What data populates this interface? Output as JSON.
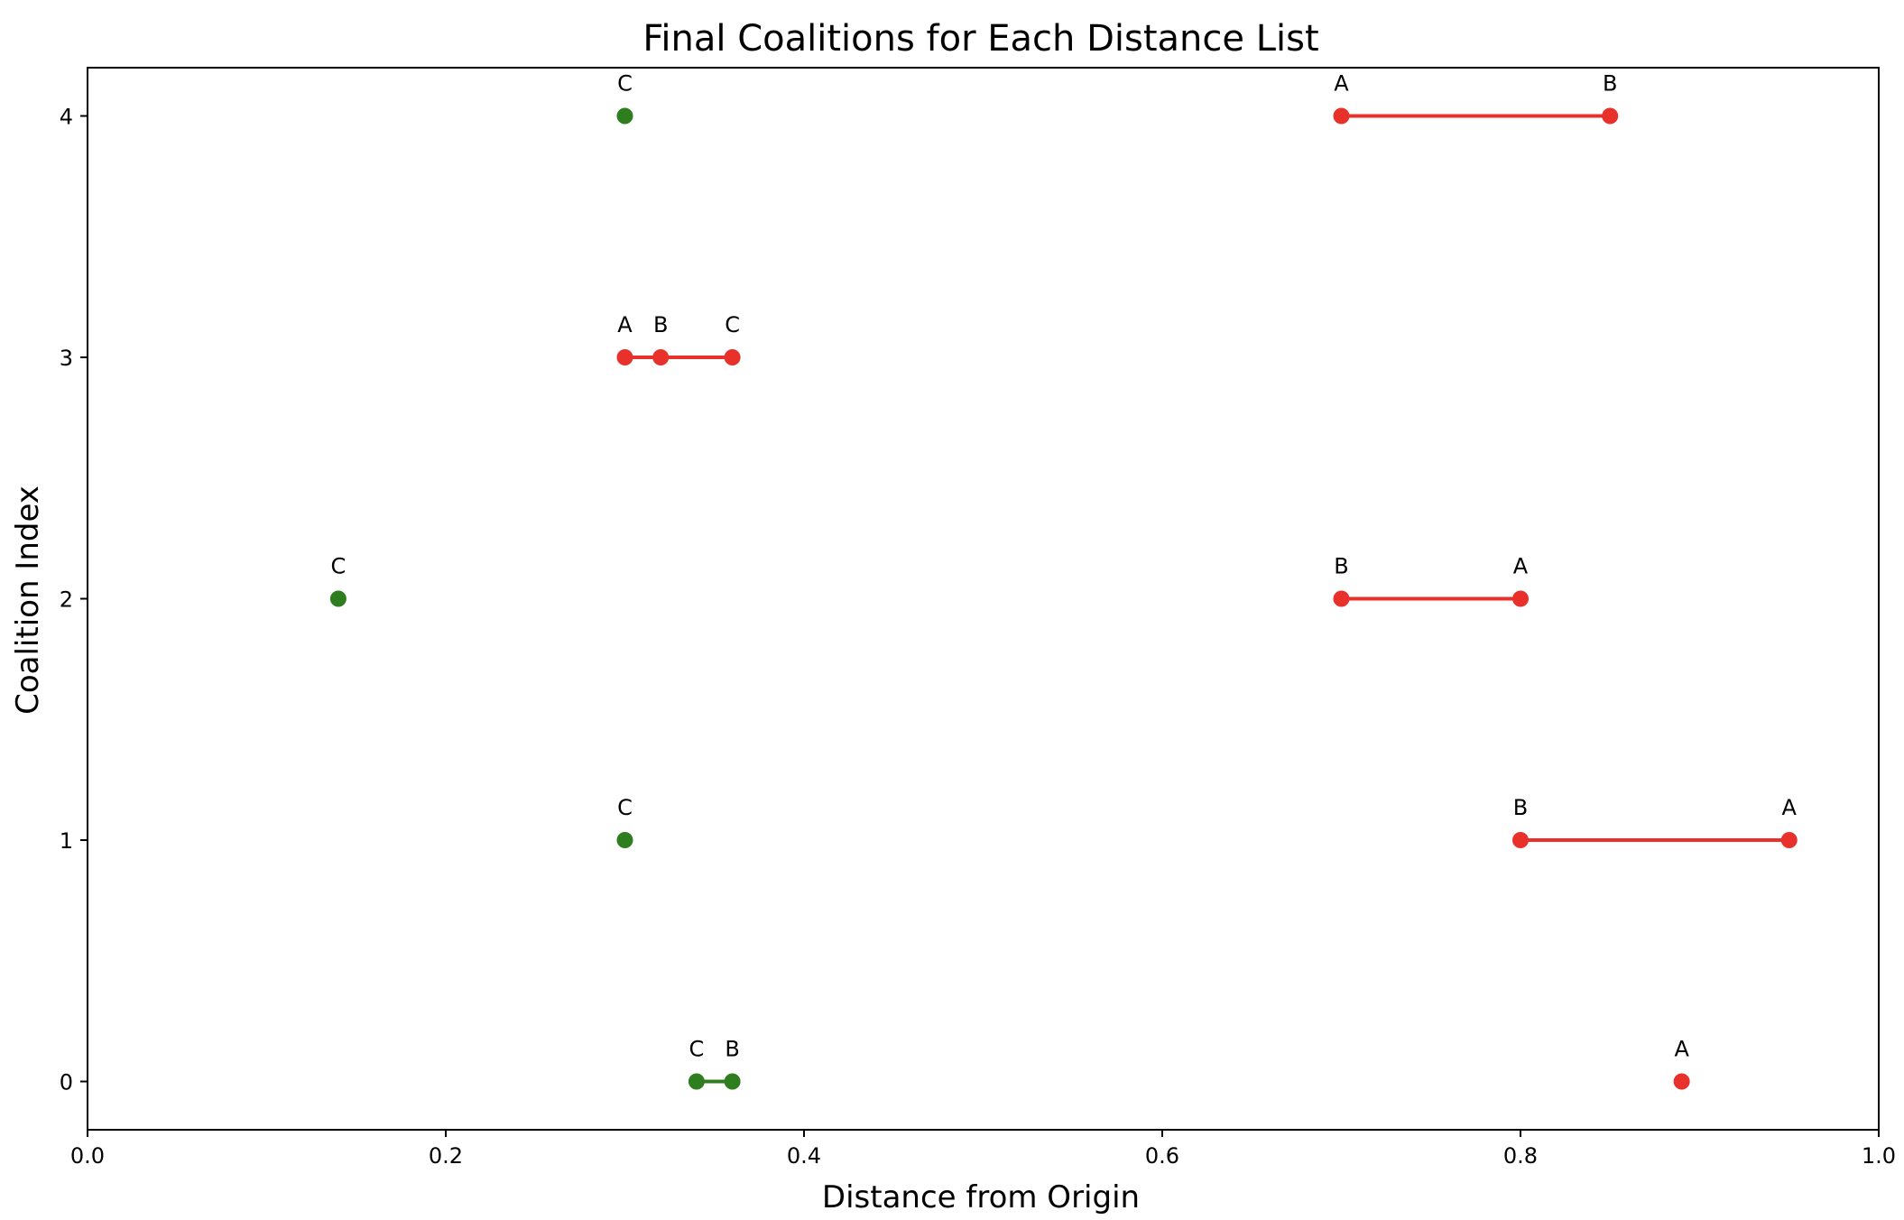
{
  "chart_data": {
    "type": "scatter",
    "title": "Final Coalitions for Each Distance List",
    "xlabel": "Distance from Origin",
    "ylabel": "Coalition Index",
    "xlim": [
      0.0,
      1.0
    ],
    "ylim": [
      -0.2,
      4.2
    ],
    "xticks": [
      0.0,
      0.2,
      0.4,
      0.6,
      0.8,
      1.0
    ],
    "xtick_labels": [
      "0.0",
      "0.2",
      "0.4",
      "0.6",
      "0.8",
      "1.0"
    ],
    "yticks": [
      0,
      1,
      2,
      3,
      4
    ],
    "ytick_labels": [
      "0",
      "1",
      "2",
      "3",
      "4"
    ],
    "grid": false,
    "colors": {
      "green": "#2e7d1e",
      "red": "#e8312a"
    },
    "coalitions": [
      {
        "index": 0,
        "color": "green",
        "points": [
          {
            "label": "C",
            "x": 0.34
          },
          {
            "label": "B",
            "x": 0.36
          }
        ]
      },
      {
        "index": 0,
        "color": "red",
        "points": [
          {
            "label": "A",
            "x": 0.89
          }
        ]
      },
      {
        "index": 1,
        "color": "green",
        "points": [
          {
            "label": "C",
            "x": 0.3
          }
        ]
      },
      {
        "index": 1,
        "color": "red",
        "points": [
          {
            "label": "B",
            "x": 0.8
          },
          {
            "label": "A",
            "x": 0.95
          }
        ]
      },
      {
        "index": 2,
        "color": "green",
        "points": [
          {
            "label": "C",
            "x": 0.14
          }
        ]
      },
      {
        "index": 2,
        "color": "red",
        "points": [
          {
            "label": "B",
            "x": 0.7
          },
          {
            "label": "A",
            "x": 0.8
          }
        ]
      },
      {
        "index": 3,
        "color": "red",
        "points": [
          {
            "label": "A",
            "x": 0.3
          },
          {
            "label": "B",
            "x": 0.32
          },
          {
            "label": "C",
            "x": 0.36
          }
        ]
      },
      {
        "index": 4,
        "color": "green",
        "points": [
          {
            "label": "C",
            "x": 0.3
          }
        ]
      },
      {
        "index": 4,
        "color": "red",
        "points": [
          {
            "label": "A",
            "x": 0.7
          },
          {
            "label": "B",
            "x": 0.85
          }
        ]
      }
    ]
  }
}
